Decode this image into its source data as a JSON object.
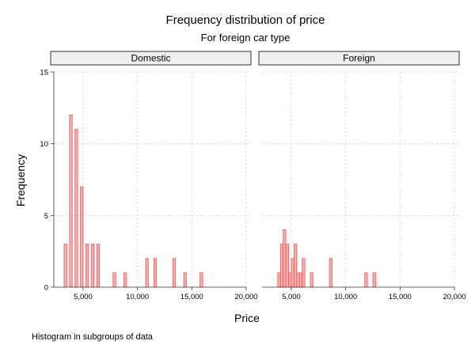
{
  "chart_data": {
    "type": "bar",
    "title": "Frequency distribution of price",
    "subtitle": "For foreign car type",
    "xlabel": "Price",
    "ylabel": "Frequency",
    "note": "Histogram in subgroups of data",
    "xlim": [
      2600,
      20000
    ],
    "ylim": [
      0,
      15
    ],
    "xticks": [
      5000,
      10000,
      15000,
      20000
    ],
    "xtick_labels": [
      "5,000",
      "10,000",
      "15,000",
      "20,000"
    ],
    "yticks": [
      0,
      5,
      10,
      15
    ],
    "ytick_labels": [
      "0",
      "5",
      "10",
      "15"
    ],
    "grid": true,
    "bar_fill": "#ffaaaa",
    "bar_edge": "#e06060",
    "panel_header_fill": "#efefef",
    "panels": [
      {
        "name": "Domestic",
        "bars": [
          {
            "x0": 3250,
            "x1": 3500,
            "count": 3
          },
          {
            "x0": 3500,
            "x1": 3750,
            "count": 0
          },
          {
            "x0": 3750,
            "x1": 4000,
            "count": 12
          },
          {
            "x0": 4000,
            "x1": 4250,
            "count": 0
          },
          {
            "x0": 4250,
            "x1": 4500,
            "count": 11
          },
          {
            "x0": 4500,
            "x1": 4750,
            "count": 0
          },
          {
            "x0": 4750,
            "x1": 5000,
            "count": 7
          },
          {
            "x0": 5000,
            "x1": 5250,
            "count": 0
          },
          {
            "x0": 5250,
            "x1": 5500,
            "count": 3
          },
          {
            "x0": 5500,
            "x1": 5750,
            "count": 0
          },
          {
            "x0": 5750,
            "x1": 6000,
            "count": 3
          },
          {
            "x0": 6000,
            "x1": 6250,
            "count": 0
          },
          {
            "x0": 6250,
            "x1": 6500,
            "count": 3
          },
          {
            "x0": 7750,
            "x1": 8000,
            "count": 1
          },
          {
            "x0": 8750,
            "x1": 9000,
            "count": 1
          },
          {
            "x0": 10750,
            "x1": 11000,
            "count": 2
          },
          {
            "x0": 11250,
            "x1": 11500,
            "count": 0
          },
          {
            "x0": 11500,
            "x1": 11750,
            "count": 2
          },
          {
            "x0": 13250,
            "x1": 13500,
            "count": 2
          },
          {
            "x0": 14250,
            "x1": 14500,
            "count": 1
          },
          {
            "x0": 15750,
            "x1": 16000,
            "count": 1
          }
        ]
      },
      {
        "name": "Foreign",
        "bars": [
          {
            "x0": 3750,
            "x1": 4000,
            "count": 1
          },
          {
            "x0": 4000,
            "x1": 4250,
            "count": 3
          },
          {
            "x0": 4250,
            "x1": 4500,
            "count": 4
          },
          {
            "x0": 4500,
            "x1": 4750,
            "count": 3
          },
          {
            "x0": 4750,
            "x1": 5000,
            "count": 1
          },
          {
            "x0": 5000,
            "x1": 5250,
            "count": 2
          },
          {
            "x0": 5250,
            "x1": 5500,
            "count": 3
          },
          {
            "x0": 5500,
            "x1": 5750,
            "count": 1
          },
          {
            "x0": 5750,
            "x1": 6000,
            "count": 1
          },
          {
            "x0": 6000,
            "x1": 6250,
            "count": 2
          },
          {
            "x0": 6750,
            "x1": 7000,
            "count": 1
          },
          {
            "x0": 7750,
            "x1": 8000,
            "count": 0
          },
          {
            "x0": 8500,
            "x1": 8750,
            "count": 2
          },
          {
            "x0": 11750,
            "x1": 12000,
            "count": 1
          },
          {
            "x0": 12250,
            "x1": 12500,
            "count": 0
          },
          {
            "x0": 12500,
            "x1": 12750,
            "count": 1
          }
        ]
      }
    ]
  }
}
